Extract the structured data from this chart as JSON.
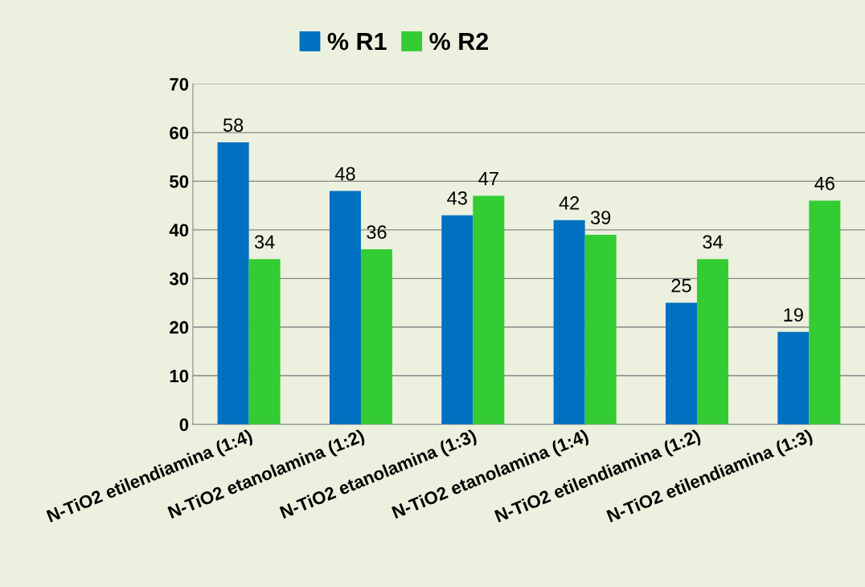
{
  "chart_data": {
    "type": "bar",
    "categories": [
      "N-TiO2 etilendiamina (1:4)",
      "N-TiO2 etanolamina (1:2)",
      "N-TiO2 etanolamina (1:3)",
      "N-TiO2 etanolamina (1:4)",
      "N-TiO2 etilendiamina (1:2)",
      "N-TiO2 etilendiamina (1:3)"
    ],
    "series": [
      {
        "name": "% R1",
        "color": "#0070c0",
        "values": [
          58,
          48,
          43,
          42,
          25,
          19
        ]
      },
      {
        "name": "% R2",
        "color": "#33cc33",
        "values": [
          34,
          36,
          47,
          39,
          34,
          46
        ]
      }
    ],
    "ylim": [
      0,
      70
    ],
    "yticks": [
      0,
      10,
      20,
      30,
      40,
      50,
      60,
      70
    ],
    "grid": "y",
    "legend": "top",
    "data_labels": true
  }
}
